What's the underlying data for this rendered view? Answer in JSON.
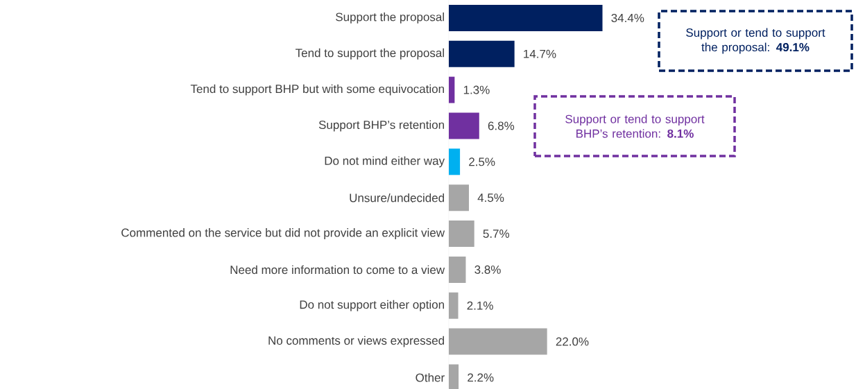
{
  "chart_data": {
    "type": "bar",
    "orientation": "horizontal",
    "categories": [
      "Support the proposal",
      "Tend to support the proposal",
      "Tend to support BHP but with some equivocation",
      "Support BHP’s retention",
      "Do not mind either way",
      "Unsure/undecided",
      "Commented on the service but did not provide an explicit view",
      "Need more information to come to a view",
      "Do not support either option",
      "No comments or views expressed",
      "Other"
    ],
    "values": [
      34.4,
      14.7,
      1.3,
      6.8,
      2.5,
      4.5,
      5.7,
      3.8,
      2.1,
      22.0,
      2.2
    ],
    "value_labels": [
      "34.4%",
      "14.7%",
      "1.3%",
      "6.8%",
      "2.5%",
      "4.5%",
      "5.7%",
      "3.8%",
      "2.1%",
      "22.0%",
      "2.2%"
    ],
    "colors": [
      "#002060",
      "#002060",
      "#7030a0",
      "#7030a0",
      "#00b0f0",
      "#a6a6a6",
      "#a6a6a6",
      "#a6a6a6",
      "#a6a6a6",
      "#a6a6a6",
      "#a6a6a6"
    ],
    "annotations": [
      "Support or tend to support the proposal: **49.1%**",
      "Support or tend to support BHP’s retention: **8.1%**"
    ],
    "grid": false
  }
}
